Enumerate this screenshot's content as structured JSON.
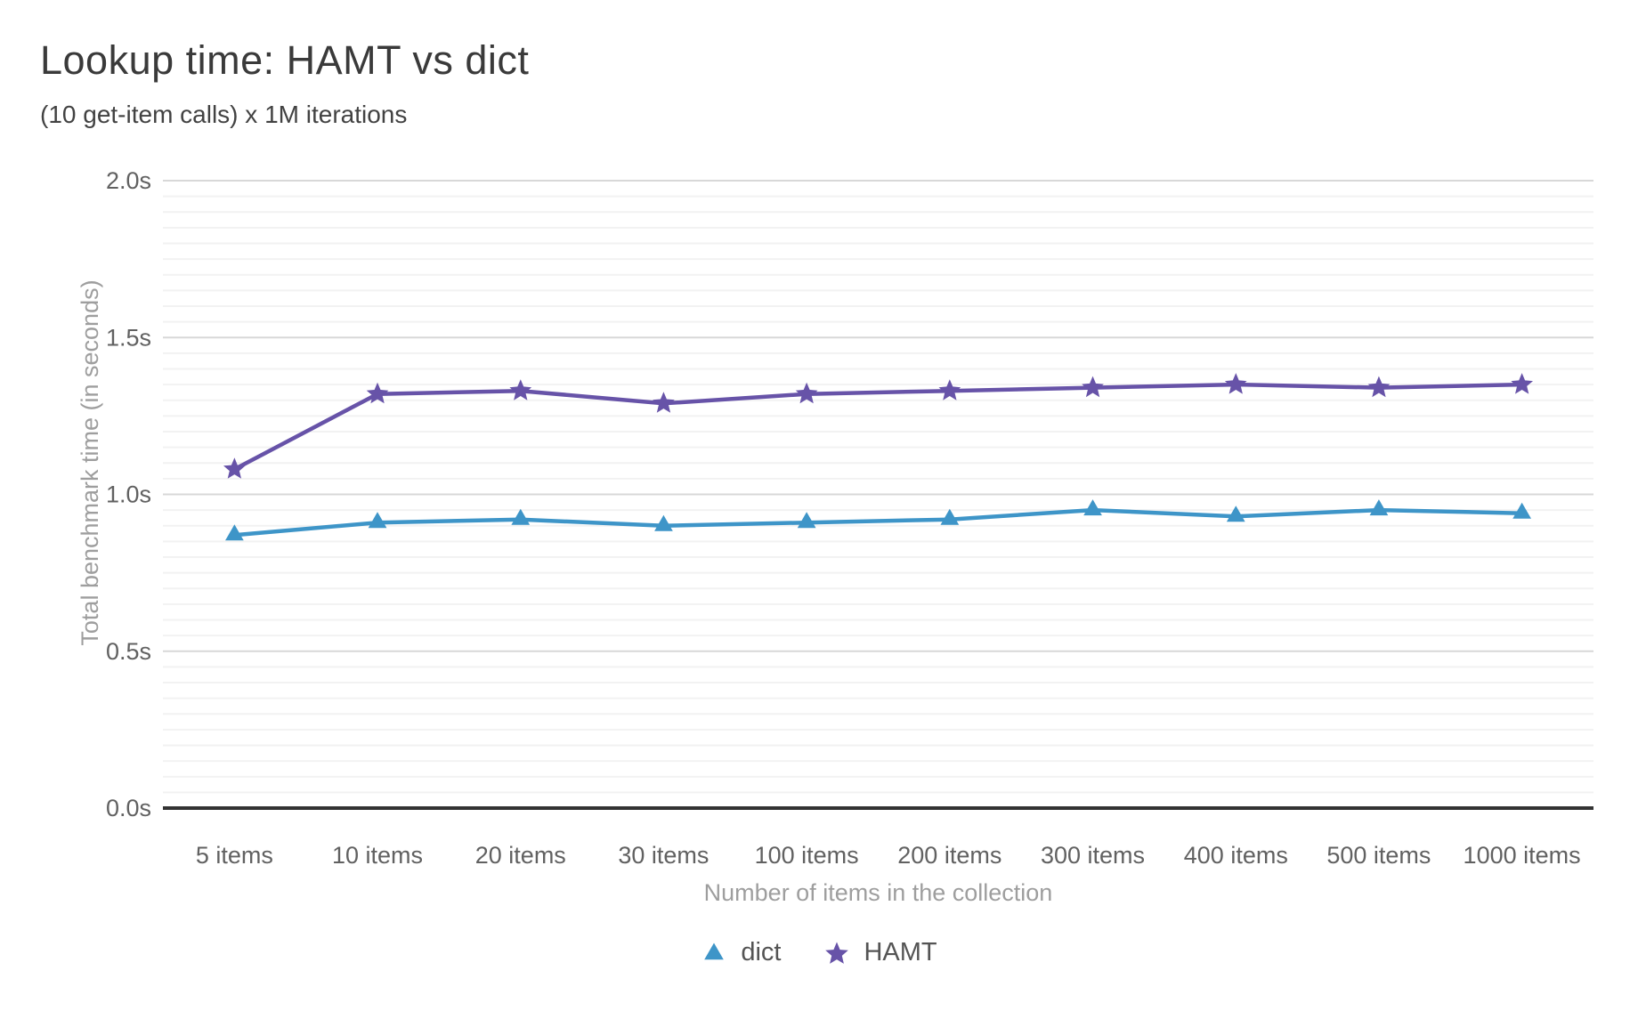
{
  "chart_data": {
    "type": "line",
    "title": "Lookup time: HAMT vs dict",
    "subtitle": "(10 get-item calls) x 1M iterations",
    "xlabel": "Number of items in the collection",
    "ylabel": "Total benchmark time (in seconds)",
    "categories": [
      "5 items",
      "10 items",
      "20 items",
      "30 items",
      "100 items",
      "200 items",
      "300 items",
      "400 items",
      "500 items",
      "1000 items"
    ],
    "series": [
      {
        "name": "dict",
        "marker": "triangle",
        "color": "#3e95c8",
        "values": [
          0.87,
          0.91,
          0.92,
          0.9,
          0.91,
          0.92,
          0.95,
          0.93,
          0.95,
          0.94
        ]
      },
      {
        "name": "HAMT",
        "marker": "star",
        "color": "#6753a8",
        "values": [
          1.08,
          1.32,
          1.33,
          1.29,
          1.32,
          1.33,
          1.34,
          1.35,
          1.34,
          1.35
        ]
      }
    ],
    "ylim": [
      0,
      2
    ],
    "y_ticks": [
      {
        "value": 0,
        "label": "0.0s"
      },
      {
        "value": 0.5,
        "label": "0.5s"
      },
      {
        "value": 1,
        "label": "1.0s"
      },
      {
        "value": 1.5,
        "label": "1.5s"
      },
      {
        "value": 2,
        "label": "2.0s"
      }
    ],
    "y_minor_step": 0.05,
    "grid": {
      "major_color": "#d8d8d8",
      "minor_color": "#f2f2f2",
      "baseline_color": "#333333"
    },
    "legend_position": "bottom-center",
    "grid_on": true
  }
}
